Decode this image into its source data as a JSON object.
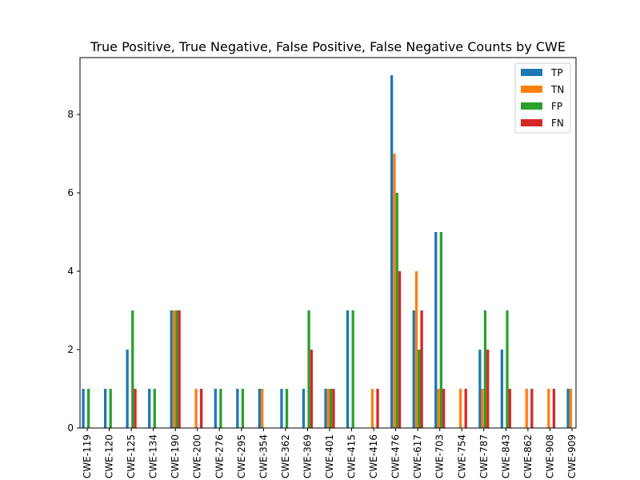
{
  "chart_data": {
    "type": "bar",
    "title": "True Positive, True Negative, False Positive, False Negative Counts by CWE",
    "xlabel": "",
    "ylabel": "",
    "ylim": [
      0,
      9.45
    ],
    "yticks": [
      0,
      2,
      4,
      6,
      8
    ],
    "grid": false,
    "legend_position": "top-right",
    "categories": [
      "CWE-119",
      "CWE-120",
      "CWE-125",
      "CWE-134",
      "CWE-190",
      "CWE-200",
      "CWE-276",
      "CWE-295",
      "CWE-354",
      "CWE-362",
      "CWE-369",
      "CWE-401",
      "CWE-415",
      "CWE-416",
      "CWE-476",
      "CWE-617",
      "CWE-703",
      "CWE-754",
      "CWE-787",
      "CWE-843",
      "CWE-862",
      "CWE-908",
      "CWE-909"
    ],
    "series": [
      {
        "name": "TP",
        "color": "#1f77b4",
        "values": [
          1,
          1,
          2,
          1,
          3,
          0,
          1,
          1,
          1,
          1,
          1,
          1,
          3,
          0,
          9,
          3,
          5,
          0,
          2,
          2,
          0,
          0,
          1
        ]
      },
      {
        "name": "TN",
        "color": "#ff7f0e",
        "values": [
          0,
          0,
          0,
          0,
          3,
          1,
          0,
          0,
          1,
          0,
          0,
          1,
          0,
          1,
          7,
          4,
          1,
          1,
          1,
          0,
          1,
          1,
          1
        ]
      },
      {
        "name": "FP",
        "color": "#2ca02c",
        "values": [
          1,
          1,
          3,
          1,
          3,
          0,
          1,
          1,
          0,
          1,
          3,
          1,
          3,
          0,
          6,
          2,
          5,
          0,
          3,
          3,
          0,
          0,
          0
        ]
      },
      {
        "name": "FN",
        "color": "#d62728",
        "values": [
          0,
          0,
          1,
          0,
          3,
          1,
          0,
          0,
          0,
          0,
          2,
          1,
          0,
          1,
          4,
          3,
          1,
          1,
          2,
          1,
          1,
          1,
          0
        ]
      }
    ]
  }
}
